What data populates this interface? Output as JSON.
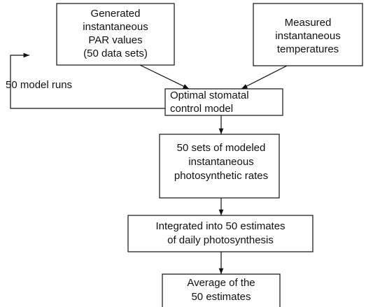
{
  "nodes": [
    {
      "lines": [
        "Generated",
        "instantaneous",
        "PAR values",
        "(50 data sets)"
      ]
    },
    {
      "lines": [
        "Measured",
        "instantaneous",
        "temperatures"
      ]
    },
    {
      "lines": [
        "Optimal stomatal",
        "control model"
      ]
    },
    {
      "lines": [
        "50 sets of modeled",
        "instantaneous",
        "photosynthetic rates"
      ]
    },
    {
      "lines": [
        "Integrated into 50 estimates",
        "of daily photosynthesis"
      ]
    },
    {
      "lines": [
        "Average of the",
        "50 estimates"
      ]
    }
  ],
  "loop_label": "50 model runs"
}
